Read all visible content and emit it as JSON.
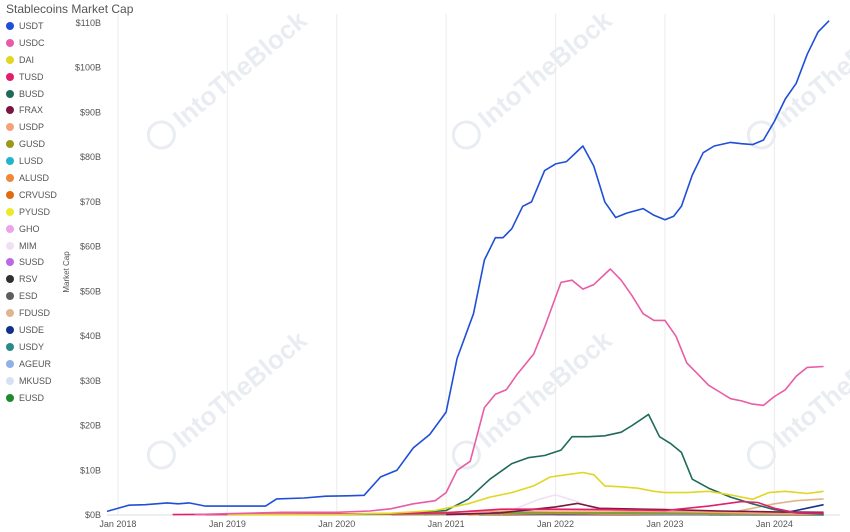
{
  "chart_data": {
    "type": "line",
    "title": "Stablecoins Market Cap",
    "ylabel": "Market Cap",
    "xlabel": "",
    "watermark": "IntoTheBlock",
    "ylim": [
      0,
      112
    ],
    "y_unit": "billions USD",
    "y_ticks": [
      {
        "value": 0,
        "label": "$0B"
      },
      {
        "value": 10,
        "label": "$10B"
      },
      {
        "value": 20,
        "label": "$20B"
      },
      {
        "value": 30,
        "label": "$30B"
      },
      {
        "value": 40,
        "label": "$40B"
      },
      {
        "value": 50,
        "label": "$50B"
      },
      {
        "value": 60,
        "label": "$60B"
      },
      {
        "value": 70,
        "label": "$70B"
      },
      {
        "value": 80,
        "label": "$80B"
      },
      {
        "value": 90,
        "label": "$90B"
      },
      {
        "value": 100,
        "label": "$100B"
      },
      {
        "value": 110,
        "label": "$110B"
      }
    ],
    "xlim": [
      2017.9,
      2024.6
    ],
    "x_ticks": [
      {
        "value": 2018.0,
        "label": "Jan 2018"
      },
      {
        "value": 2019.0,
        "label": "Jan 2019"
      },
      {
        "value": 2020.0,
        "label": "Jan 2020"
      },
      {
        "value": 2021.0,
        "label": "Jan 2021"
      },
      {
        "value": 2022.0,
        "label": "Jan 2022"
      },
      {
        "value": 2023.0,
        "label": "Jan 2023"
      },
      {
        "value": 2024.0,
        "label": "Jan 2024"
      }
    ],
    "grid": "vertical",
    "legend_position": "left",
    "series": [
      {
        "name": "USDT",
        "color": "#1f4fd6",
        "points": [
          [
            2017.9,
            0.8
          ],
          [
            2018.1,
            2.2
          ],
          [
            2018.25,
            2.3
          ],
          [
            2018.45,
            2.7
          ],
          [
            2018.55,
            2.5
          ],
          [
            2018.65,
            2.7
          ],
          [
            2018.8,
            2.0
          ],
          [
            2019.0,
            2.0
          ],
          [
            2019.2,
            2.0
          ],
          [
            2019.35,
            2.0
          ],
          [
            2019.45,
            3.6
          ],
          [
            2019.7,
            3.8
          ],
          [
            2019.9,
            4.2
          ],
          [
            2020.1,
            4.3
          ],
          [
            2020.25,
            4.4
          ],
          [
            2020.4,
            8.5
          ],
          [
            2020.55,
            10.0
          ],
          [
            2020.7,
            15.0
          ],
          [
            2020.85,
            18.0
          ],
          [
            2021.0,
            23.0
          ],
          [
            2021.1,
            35.0
          ],
          [
            2021.25,
            45.0
          ],
          [
            2021.35,
            57.0
          ],
          [
            2021.45,
            62.0
          ],
          [
            2021.52,
            62.0
          ],
          [
            2021.6,
            64.0
          ],
          [
            2021.7,
            69.0
          ],
          [
            2021.78,
            70.0
          ],
          [
            2021.9,
            77.0
          ],
          [
            2022.0,
            78.5
          ],
          [
            2022.1,
            79.0
          ],
          [
            2022.25,
            82.5
          ],
          [
            2022.35,
            78.0
          ],
          [
            2022.45,
            70.0
          ],
          [
            2022.55,
            66.5
          ],
          [
            2022.65,
            67.5
          ],
          [
            2022.8,
            68.5
          ],
          [
            2022.9,
            67.0
          ],
          [
            2023.0,
            66.0
          ],
          [
            2023.08,
            66.8
          ],
          [
            2023.15,
            69.0
          ],
          [
            2023.25,
            76.0
          ],
          [
            2023.35,
            81.0
          ],
          [
            2023.45,
            82.5
          ],
          [
            2023.6,
            83.3
          ],
          [
            2023.7,
            83.0
          ],
          [
            2023.8,
            82.8
          ],
          [
            2023.9,
            83.8
          ],
          [
            2024.0,
            88.0
          ],
          [
            2024.1,
            93.0
          ],
          [
            2024.2,
            96.5
          ],
          [
            2024.3,
            103.0
          ],
          [
            2024.4,
            108.0
          ],
          [
            2024.5,
            110.5
          ]
        ]
      },
      {
        "name": "USDC",
        "color": "#e95ba6",
        "points": [
          [
            2018.7,
            0.1
          ],
          [
            2019.0,
            0.3
          ],
          [
            2019.5,
            0.6
          ],
          [
            2020.0,
            0.6
          ],
          [
            2020.3,
            0.9
          ],
          [
            2020.5,
            1.4
          ],
          [
            2020.7,
            2.5
          ],
          [
            2020.9,
            3.2
          ],
          [
            2021.0,
            5.0
          ],
          [
            2021.1,
            10.0
          ],
          [
            2021.22,
            12.0
          ],
          [
            2021.35,
            24.0
          ],
          [
            2021.45,
            27.0
          ],
          [
            2021.55,
            28.0
          ],
          [
            2021.65,
            31.5
          ],
          [
            2021.8,
            36.0
          ],
          [
            2021.9,
            42.0
          ],
          [
            2022.05,
            52.0
          ],
          [
            2022.15,
            52.5
          ],
          [
            2022.25,
            50.5
          ],
          [
            2022.35,
            51.5
          ],
          [
            2022.5,
            55.0
          ],
          [
            2022.6,
            52.5
          ],
          [
            2022.7,
            49.0
          ],
          [
            2022.8,
            45.0
          ],
          [
            2022.9,
            43.5
          ],
          [
            2023.0,
            43.5
          ],
          [
            2023.1,
            40.0
          ],
          [
            2023.2,
            34.0
          ],
          [
            2023.3,
            31.5
          ],
          [
            2023.4,
            29.0
          ],
          [
            2023.5,
            27.5
          ],
          [
            2023.6,
            26.0
          ],
          [
            2023.7,
            25.5
          ],
          [
            2023.8,
            24.8
          ],
          [
            2023.9,
            24.5
          ],
          [
            2024.0,
            26.5
          ],
          [
            2024.1,
            28.0
          ],
          [
            2024.2,
            31.0
          ],
          [
            2024.3,
            33.0
          ],
          [
            2024.45,
            33.2
          ]
        ]
      },
      {
        "name": "DAI",
        "color": "#e0d623",
        "points": [
          [
            2019.0,
            0.1
          ],
          [
            2020.0,
            0.1
          ],
          [
            2020.5,
            0.4
          ],
          [
            2020.9,
            1.0
          ],
          [
            2021.2,
            2.5
          ],
          [
            2021.4,
            4.0
          ],
          [
            2021.6,
            5.0
          ],
          [
            2021.8,
            6.5
          ],
          [
            2021.95,
            8.5
          ],
          [
            2022.1,
            9.0
          ],
          [
            2022.25,
            9.5
          ],
          [
            2022.35,
            9.0
          ],
          [
            2022.45,
            6.5
          ],
          [
            2022.6,
            6.3
          ],
          [
            2022.75,
            6.0
          ],
          [
            2022.9,
            5.3
          ],
          [
            2023.0,
            5.0
          ],
          [
            2023.2,
            5.0
          ],
          [
            2023.4,
            5.3
          ],
          [
            2023.6,
            4.5
          ],
          [
            2023.8,
            3.5
          ],
          [
            2023.95,
            5.0
          ],
          [
            2024.1,
            5.3
          ],
          [
            2024.3,
            4.8
          ],
          [
            2024.45,
            5.3
          ]
        ]
      },
      {
        "name": "TUSD",
        "color": "#e0206a",
        "points": [
          [
            2018.5,
            0.1
          ],
          [
            2019.5,
            0.2
          ],
          [
            2020.5,
            0.3
          ],
          [
            2021.0,
            0.5
          ],
          [
            2021.5,
            1.3
          ],
          [
            2022.0,
            1.3
          ],
          [
            2022.5,
            1.2
          ],
          [
            2023.0,
            1.0
          ],
          [
            2023.4,
            2.0
          ],
          [
            2023.7,
            3.0
          ],
          [
            2023.85,
            2.8
          ],
          [
            2024.0,
            1.5
          ],
          [
            2024.2,
            0.5
          ],
          [
            2024.45,
            0.4
          ]
        ]
      },
      {
        "name": "BUSD",
        "color": "#1f6a5a",
        "points": [
          [
            2019.8,
            0.1
          ],
          [
            2020.3,
            0.2
          ],
          [
            2020.7,
            0.5
          ],
          [
            2021.0,
            1.0
          ],
          [
            2021.2,
            3.5
          ],
          [
            2021.4,
            8.0
          ],
          [
            2021.6,
            11.5
          ],
          [
            2021.75,
            12.8
          ],
          [
            2021.9,
            13.3
          ],
          [
            2022.05,
            14.5
          ],
          [
            2022.15,
            17.5
          ],
          [
            2022.3,
            17.5
          ],
          [
            2022.45,
            17.7
          ],
          [
            2022.6,
            18.5
          ],
          [
            2022.7,
            20.0
          ],
          [
            2022.85,
            22.5
          ],
          [
            2022.95,
            17.5
          ],
          [
            2023.05,
            16.0
          ],
          [
            2023.15,
            14.0
          ],
          [
            2023.25,
            8.0
          ],
          [
            2023.4,
            6.0
          ],
          [
            2023.6,
            4.0
          ],
          [
            2023.8,
            2.5
          ],
          [
            2024.0,
            1.2
          ],
          [
            2024.2,
            0.5
          ],
          [
            2024.45,
            0.2
          ]
        ]
      },
      {
        "name": "FRAX",
        "color": "#7b1640",
        "points": [
          [
            2021.0,
            0.1
          ],
          [
            2021.5,
            0.5
          ],
          [
            2022.0,
            1.8
          ],
          [
            2022.2,
            2.6
          ],
          [
            2022.4,
            1.5
          ],
          [
            2023.0,
            1.2
          ],
          [
            2023.5,
            0.9
          ],
          [
            2024.0,
            0.7
          ],
          [
            2024.45,
            0.6
          ]
        ]
      },
      {
        "name": "USDP",
        "color": "#f5a27a",
        "points": [
          [
            2018.8,
            0.1
          ],
          [
            2019.5,
            0.2
          ],
          [
            2020.5,
            0.3
          ],
          [
            2021.0,
            0.6
          ],
          [
            2021.5,
            0.9
          ],
          [
            2022.0,
            0.9
          ],
          [
            2022.5,
            0.9
          ],
          [
            2023.0,
            0.8
          ],
          [
            2023.5,
            0.6
          ],
          [
            2024.0,
            0.3
          ],
          [
            2024.45,
            0.2
          ]
        ]
      },
      {
        "name": "GUSD",
        "color": "#9a9a1a",
        "points": [
          [
            2018.8,
            0.05
          ],
          [
            2020.0,
            0.1
          ],
          [
            2021.0,
            0.2
          ],
          [
            2022.0,
            0.5
          ],
          [
            2023.0,
            0.5
          ],
          [
            2024.0,
            0.3
          ],
          [
            2024.45,
            0.2
          ]
        ]
      },
      {
        "name": "LUSD",
        "color": "#22b5c9",
        "points": [
          [
            2021.3,
            0.1
          ],
          [
            2021.5,
            0.7
          ],
          [
            2022.0,
            0.5
          ],
          [
            2022.5,
            0.4
          ],
          [
            2023.0,
            0.3
          ],
          [
            2024.0,
            0.2
          ],
          [
            2024.45,
            0.1
          ]
        ]
      },
      {
        "name": "ALUSD",
        "color": "#f0883a",
        "points": [
          [
            2021.2,
            0.05
          ],
          [
            2022.0,
            0.4
          ],
          [
            2022.5,
            0.2
          ],
          [
            2023.5,
            0.1
          ],
          [
            2024.45,
            0.05
          ]
        ]
      },
      {
        "name": "CRVUSD",
        "color": "#e06b10",
        "points": [
          [
            2023.4,
            0.05
          ],
          [
            2023.8,
            0.2
          ],
          [
            2024.2,
            0.2
          ],
          [
            2024.45,
            0.2
          ]
        ]
      },
      {
        "name": "PYUSD",
        "color": "#eaea2a",
        "points": [
          [
            2023.6,
            0.05
          ],
          [
            2024.0,
            0.3
          ],
          [
            2024.45,
            0.4
          ]
        ]
      },
      {
        "name": "GHO",
        "color": "#e9a4ea",
        "points": [
          [
            2023.6,
            0.05
          ],
          [
            2024.0,
            0.1
          ],
          [
            2024.45,
            0.1
          ]
        ]
      },
      {
        "name": "MIM",
        "color": "#f0dff5",
        "points": [
          [
            2021.5,
            0.1
          ],
          [
            2021.85,
            3.5
          ],
          [
            2022.0,
            4.5
          ],
          [
            2022.2,
            3.0
          ],
          [
            2022.4,
            1.0
          ],
          [
            2023.0,
            0.4
          ],
          [
            2024.0,
            0.3
          ],
          [
            2024.45,
            0.3
          ]
        ]
      },
      {
        "name": "SUSD",
        "color": "#b96be0",
        "points": [
          [
            2020.5,
            0.05
          ],
          [
            2021.0,
            0.1
          ],
          [
            2021.5,
            0.2
          ],
          [
            2022.0,
            0.3
          ],
          [
            2023.0,
            0.1
          ],
          [
            2024.45,
            0.05
          ]
        ]
      },
      {
        "name": "RSV",
        "color": "#303030",
        "points": [
          [
            2021.3,
            0.05
          ],
          [
            2022.0,
            0.2
          ],
          [
            2023.0,
            0.1
          ],
          [
            2024.45,
            0.05
          ]
        ]
      },
      {
        "name": "ESD",
        "color": "#5e5e5e",
        "points": [
          [
            2020.8,
            0.05
          ],
          [
            2021.2,
            0.3
          ],
          [
            2021.6,
            0.1
          ],
          [
            2024.45,
            0.0
          ]
        ]
      },
      {
        "name": "FDUSD",
        "color": "#e0b58c",
        "points": [
          [
            2023.5,
            0.1
          ],
          [
            2023.8,
            1.5
          ],
          [
            2024.0,
            2.5
          ],
          [
            2024.2,
            3.2
          ],
          [
            2024.45,
            3.6
          ]
        ]
      },
      {
        "name": "USDE",
        "color": "#12318a",
        "points": [
          [
            2024.0,
            0.1
          ],
          [
            2024.2,
            1.0
          ],
          [
            2024.45,
            2.3
          ]
        ]
      },
      {
        "name": "USDY",
        "color": "#2a8a8a",
        "points": [
          [
            2023.5,
            0.02
          ],
          [
            2024.45,
            0.1
          ]
        ]
      },
      {
        "name": "AGEUR",
        "color": "#8fb0e8",
        "points": [
          [
            2022.0,
            0.05
          ],
          [
            2024.45,
            0.05
          ]
        ]
      },
      {
        "name": "MKUSD",
        "color": "#d7e0f5",
        "points": [
          [
            2023.7,
            0.02
          ],
          [
            2024.45,
            0.1
          ]
        ]
      },
      {
        "name": "EUSD",
        "color": "#1d8a2e",
        "points": [
          [
            2023.4,
            0.02
          ],
          [
            2024.45,
            0.1
          ]
        ]
      }
    ]
  }
}
